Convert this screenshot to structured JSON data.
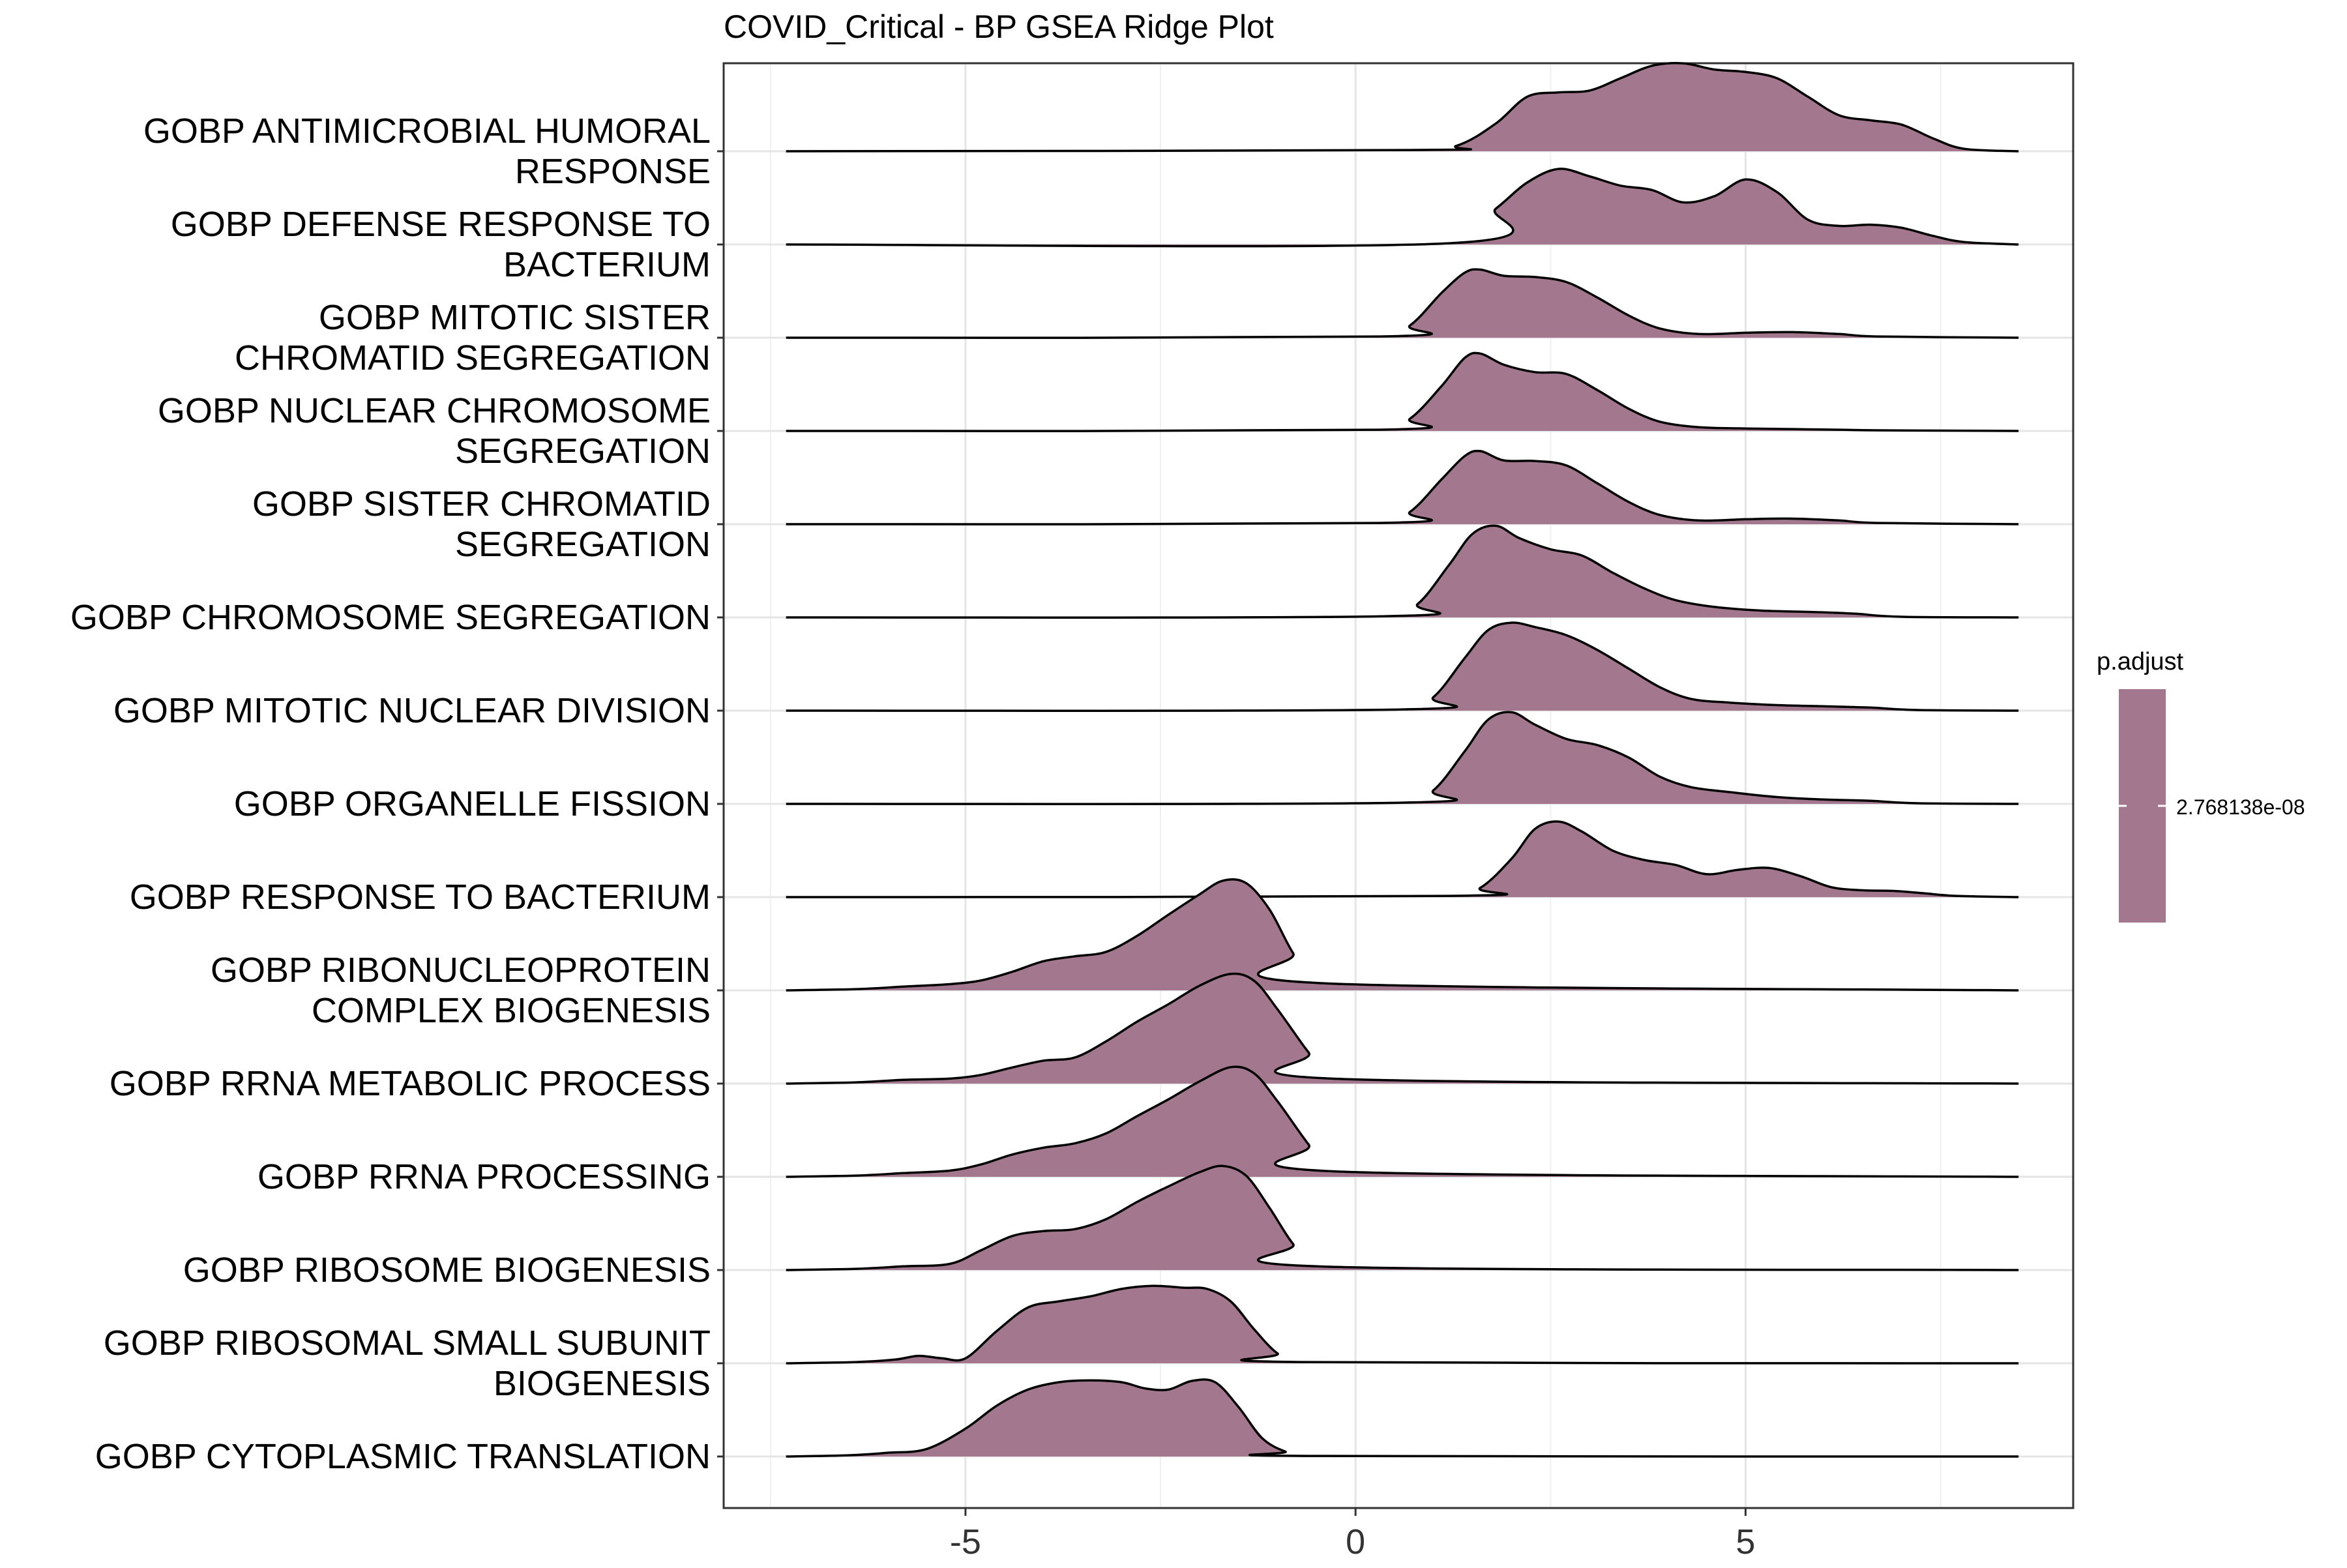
{
  "chart_data": {
    "type": "ridgeline",
    "title": "COVID_Critical - BP GSEA Ridge Plot",
    "xlabel": "",
    "ylabel": "",
    "xlim": [
      -8.1,
      9.2
    ],
    "x_ticks": [
      -5,
      0,
      5
    ],
    "x_tick_labels": [
      "-5",
      "0",
      "5"
    ],
    "grid": true,
    "fill_color": "#A3788E",
    "line_color": "#000000",
    "series": [
      {
        "name": "GOBP ANTIMICROBIAL HUMORAL RESPONSE",
        "label_lines": [
          "GOBP ANTIMICROBIAL HUMORAL",
          "RESPONSE"
        ],
        "x": [
          -7.3,
          0.7,
          1.3,
          1.8,
          2.2,
          2.6,
          3.0,
          3.4,
          3.8,
          4.2,
          4.6,
          5.0,
          5.4,
          5.8,
          6.2,
          6.6,
          7.0,
          7.4,
          7.8,
          8.5
        ],
        "y": [
          0,
          0.02,
          0.09,
          0.45,
          0.88,
          0.95,
          0.98,
          1.18,
          1.38,
          1.42,
          1.32,
          1.28,
          1.18,
          0.88,
          0.58,
          0.5,
          0.43,
          0.21,
          0.04,
          0
        ]
      },
      {
        "name": "GOBP DEFENSE RESPONSE TO BACTERIUM",
        "label_lines": [
          "GOBP DEFENSE RESPONSE TO",
          "BACTERIUM"
        ],
        "x": [
          -7.3,
          1.2,
          1.8,
          2.2,
          2.6,
          3.0,
          3.4,
          3.8,
          4.2,
          4.6,
          5.0,
          5.4,
          5.8,
          6.2,
          6.6,
          7.0,
          7.4,
          7.8,
          8.5
        ],
        "y": [
          0,
          0.02,
          0.58,
          1.0,
          1.22,
          1.1,
          0.95,
          0.88,
          0.68,
          0.78,
          1.05,
          0.85,
          0.4,
          0.3,
          0.32,
          0.27,
          0.14,
          0.04,
          0
        ]
      },
      {
        "name": "GOBP MITOTIC SISTER CHROMATID SEGREGATION",
        "label_lines": [
          "GOBP MITOTIC SISTER",
          "CHROMATID SEGREGATION"
        ],
        "x": [
          -7.3,
          0.3,
          0.7,
          1.1,
          1.4,
          1.6,
          1.9,
          2.3,
          2.7,
          3.1,
          3.5,
          3.9,
          4.4,
          5.0,
          5.6,
          6.2,
          6.7,
          8.5
        ],
        "y": [
          0,
          0.02,
          0.2,
          0.72,
          1.05,
          1.1,
          1.0,
          0.98,
          0.9,
          0.65,
          0.36,
          0.15,
          0.06,
          0.08,
          0.09,
          0.06,
          0.02,
          0
        ]
      },
      {
        "name": "GOBP NUCLEAR CHROMOSOME SEGREGATION",
        "label_lines": [
          "GOBP NUCLEAR CHROMOSOME",
          "SEGREGATION"
        ],
        "x": [
          -7.3,
          0.3,
          0.7,
          1.1,
          1.4,
          1.6,
          1.9,
          2.3,
          2.7,
          3.1,
          3.5,
          3.9,
          4.4,
          5.0,
          5.6,
          6.2,
          6.7,
          8.5
        ],
        "y": [
          0,
          0.02,
          0.2,
          0.72,
          1.18,
          1.25,
          1.07,
          0.95,
          0.92,
          0.66,
          0.36,
          0.15,
          0.06,
          0.04,
          0.03,
          0.02,
          0.01,
          0
        ]
      },
      {
        "name": "GOBP SISTER CHROMATID SEGREGATION",
        "label_lines": [
          "GOBP SISTER CHROMATID",
          "SEGREGATION"
        ],
        "x": [
          -7.3,
          0.3,
          0.7,
          1.1,
          1.4,
          1.6,
          1.9,
          2.3,
          2.7,
          3.1,
          3.5,
          3.9,
          4.4,
          5.0,
          5.6,
          6.2,
          6.7,
          8.5
        ],
        "y": [
          0,
          0.02,
          0.2,
          0.72,
          1.1,
          1.18,
          1.03,
          1.02,
          0.95,
          0.66,
          0.36,
          0.15,
          0.06,
          0.08,
          0.09,
          0.06,
          0.02,
          0
        ]
      },
      {
        "name": "GOBP CHROMOSOME SEGREGATION",
        "label_lines": [
          "GOBP CHROMOSOME SEGREGATION"
        ],
        "x": [
          -7.3,
          0.4,
          0.8,
          1.2,
          1.5,
          1.8,
          2.1,
          2.5,
          2.9,
          3.3,
          3.7,
          4.1,
          4.6,
          5.2,
          5.8,
          6.4,
          7.0,
          8.5
        ],
        "y": [
          0,
          0.02,
          0.22,
          0.85,
          1.35,
          1.48,
          1.28,
          1.1,
          1.0,
          0.72,
          0.47,
          0.28,
          0.17,
          0.11,
          0.09,
          0.06,
          0.01,
          0
        ]
      },
      {
        "name": "GOBP MITOTIC NUCLEAR DIVISION",
        "label_lines": [
          "GOBP MITOTIC NUCLEAR DIVISION"
        ],
        "x": [
          -7.3,
          0.6,
          1.0,
          1.4,
          1.7,
          2.0,
          2.3,
          2.7,
          3.1,
          3.5,
          3.9,
          4.3,
          4.8,
          5.4,
          6.0,
          6.6,
          7.2,
          8.5
        ],
        "y": [
          0,
          0.02,
          0.22,
          0.85,
          1.3,
          1.42,
          1.35,
          1.22,
          0.98,
          0.68,
          0.38,
          0.19,
          0.13,
          0.09,
          0.07,
          0.05,
          0.01,
          0
        ]
      },
      {
        "name": "GOBP ORGANELLE FISSION",
        "label_lines": [
          "GOBP ORGANELLE FISSION"
        ],
        "x": [
          -7.3,
          0.6,
          1.0,
          1.4,
          1.7,
          2.0,
          2.3,
          2.7,
          3.1,
          3.5,
          3.9,
          4.3,
          4.8,
          5.4,
          6.0,
          6.6,
          7.2,
          8.5
        ],
        "y": [
          0,
          0.02,
          0.22,
          0.85,
          1.36,
          1.48,
          1.28,
          1.05,
          0.95,
          0.75,
          0.44,
          0.27,
          0.19,
          0.11,
          0.07,
          0.05,
          0.01,
          0
        ]
      },
      {
        "name": "GOBP RESPONSE TO BACTERIUM",
        "label_lines": [
          "GOBP RESPONSE TO BACTERIUM"
        ],
        "x": [
          -7.3,
          1.2,
          1.6,
          2.0,
          2.3,
          2.6,
          2.9,
          3.3,
          3.7,
          4.1,
          4.5,
          4.9,
          5.3,
          5.7,
          6.1,
          6.5,
          6.9,
          7.3,
          7.7,
          8.5
        ],
        "y": [
          0,
          0.02,
          0.15,
          0.62,
          1.1,
          1.22,
          1.06,
          0.75,
          0.6,
          0.52,
          0.37,
          0.44,
          0.47,
          0.34,
          0.16,
          0.11,
          0.1,
          0.06,
          0.02,
          0
        ]
      },
      {
        "name": "GOBP RIBONUCLEOPROTEIN COMPLEX BIOGENESIS",
        "label_lines": [
          "GOBP RIBONUCLEOPROTEIN",
          "COMPLEX BIOGENESIS"
        ],
        "x": [
          -7.3,
          -6.4,
          -5.8,
          -5.2,
          -4.8,
          -4.4,
          -4.0,
          -3.6,
          -3.2,
          -2.8,
          -2.4,
          -2.0,
          -1.7,
          -1.4,
          -1.1,
          -0.8,
          -0.5,
          8.5
        ],
        "y": [
          0,
          0.02,
          0.06,
          0.1,
          0.16,
          0.3,
          0.47,
          0.55,
          0.62,
          0.88,
          1.22,
          1.55,
          1.77,
          1.73,
          1.3,
          0.6,
          0.12,
          0
        ]
      },
      {
        "name": "GOBP RRNA METABOLIC PROCESS",
        "label_lines": [
          "GOBP RRNA METABOLIC PROCESS"
        ],
        "x": [
          -7.3,
          -6.4,
          -5.8,
          -5.2,
          -4.8,
          -4.4,
          -4.0,
          -3.6,
          -3.2,
          -2.8,
          -2.4,
          -2.0,
          -1.6,
          -1.3,
          -1.0,
          -0.6,
          -0.3,
          8.5
        ],
        "y": [
          0,
          0.02,
          0.06,
          0.08,
          0.14,
          0.26,
          0.37,
          0.42,
          0.68,
          1.0,
          1.28,
          1.58,
          1.77,
          1.66,
          1.2,
          0.5,
          0.08,
          0
        ]
      },
      {
        "name": "GOBP RRNA PROCESSING",
        "label_lines": [
          "GOBP RRNA PROCESSING"
        ],
        "x": [
          -7.3,
          -6.4,
          -5.8,
          -5.2,
          -4.8,
          -4.4,
          -4.0,
          -3.6,
          -3.2,
          -2.8,
          -2.4,
          -2.0,
          -1.6,
          -1.3,
          -1.0,
          -0.6,
          -0.3,
          8.5
        ],
        "y": [
          0,
          0.02,
          0.06,
          0.1,
          0.2,
          0.36,
          0.47,
          0.54,
          0.7,
          0.98,
          1.25,
          1.54,
          1.77,
          1.67,
          1.22,
          0.52,
          0.09,
          0
        ]
      },
      {
        "name": "GOBP RIBOSOME BIOGENESIS",
        "label_lines": [
          "GOBP RIBOSOME BIOGENESIS"
        ],
        "x": [
          -7.3,
          -6.4,
          -5.8,
          -5.2,
          -4.8,
          -4.4,
          -4.0,
          -3.6,
          -3.2,
          -2.8,
          -2.4,
          -2.0,
          -1.7,
          -1.4,
          -1.1,
          -0.8,
          -0.5,
          8.5
        ],
        "y": [
          0,
          0.02,
          0.06,
          0.1,
          0.32,
          0.55,
          0.63,
          0.66,
          0.82,
          1.1,
          1.35,
          1.58,
          1.68,
          1.52,
          1.0,
          0.42,
          0.06,
          0
        ]
      },
      {
        "name": "GOBP RIBOSOMAL SMALL SUBUNIT BIOGENESIS",
        "label_lines": [
          "GOBP RIBOSOMAL SMALL SUBUNIT",
          "BIOGENESIS"
        ],
        "x": [
          -7.3,
          -6.4,
          -5.9,
          -5.6,
          -5.3,
          -5.0,
          -4.6,
          -4.2,
          -3.8,
          -3.4,
          -3.0,
          -2.6,
          -2.2,
          -1.9,
          -1.6,
          -1.3,
          -1.0,
          -0.7,
          8.5
        ],
        "y": [
          0,
          0.02,
          0.06,
          0.12,
          0.08,
          0.08,
          0.52,
          0.9,
          1.0,
          1.08,
          1.2,
          1.25,
          1.22,
          1.2,
          1.0,
          0.55,
          0.16,
          0.02,
          0
        ]
      },
      {
        "name": "GOBP CYTOPLASMIC TRANSLATION",
        "label_lines": [
          "GOBP CYTOPLASMIC TRANSLATION"
        ],
        "x": [
          -7.3,
          -6.5,
          -6.0,
          -5.5,
          -5.0,
          -4.6,
          -4.2,
          -3.8,
          -3.4,
          -3.0,
          -2.7,
          -2.4,
          -2.1,
          -1.8,
          -1.5,
          -1.2,
          -0.9,
          -0.6,
          8.5
        ],
        "y": [
          0,
          0.02,
          0.06,
          0.12,
          0.45,
          0.82,
          1.08,
          1.2,
          1.23,
          1.2,
          1.1,
          1.08,
          1.22,
          1.2,
          0.8,
          0.3,
          0.08,
          0.01,
          0
        ]
      }
    ],
    "legend": {
      "title": "p.adjust",
      "value_label": "2.768138e-08",
      "color": "#A3788E",
      "placement": "right"
    }
  }
}
